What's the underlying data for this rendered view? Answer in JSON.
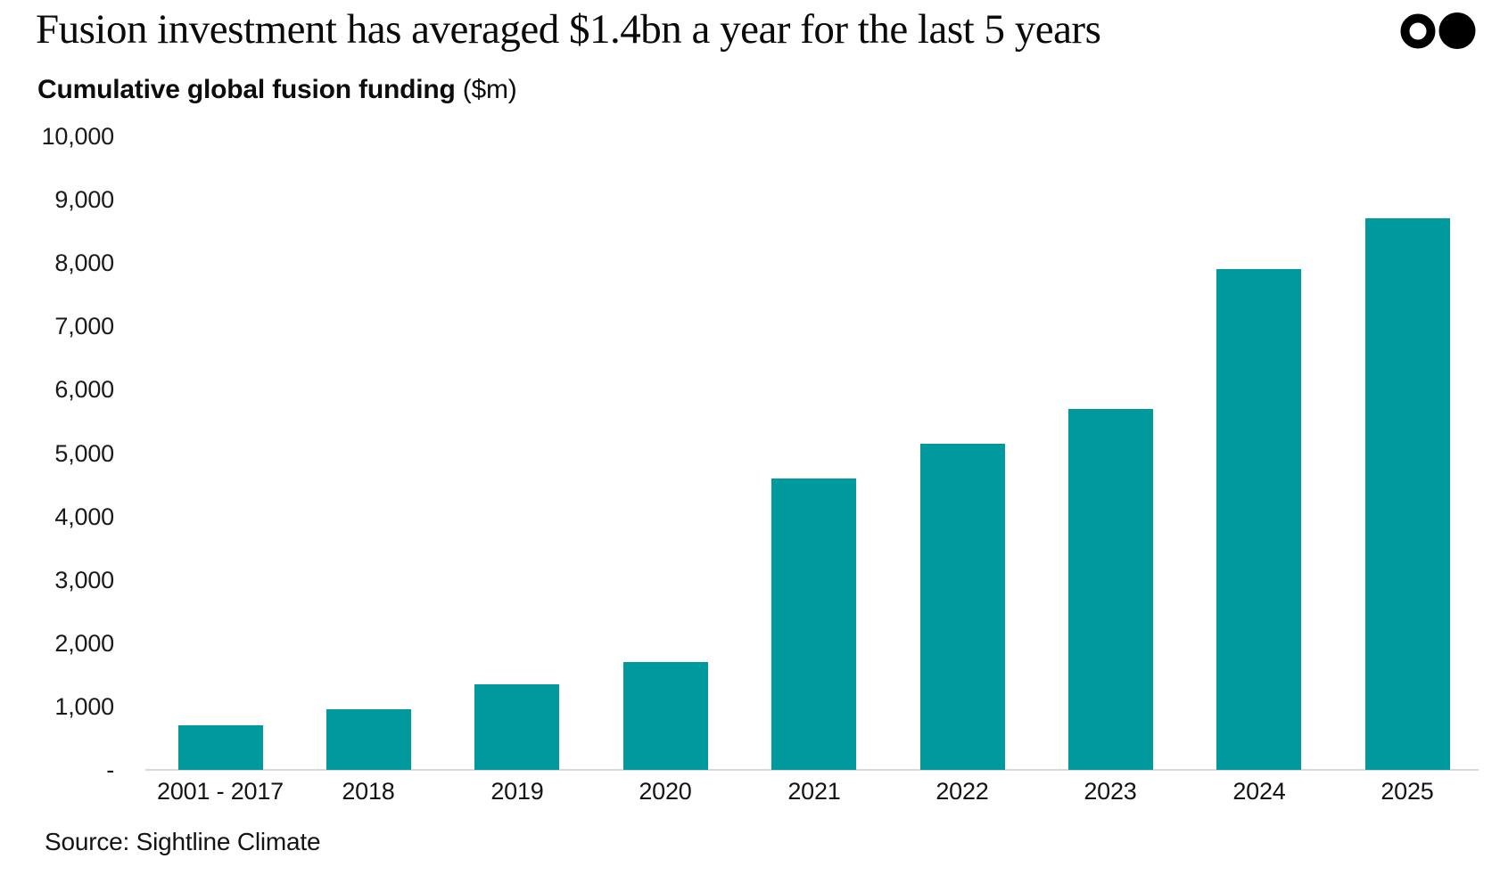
{
  "header": {
    "title": "Fusion investment has averaged $1.4bn a year for the last 5 years"
  },
  "subtitle": {
    "label": "Cumulative global fusion funding",
    "unit": "($m)"
  },
  "source": {
    "label": "Source: Sightline Climate"
  },
  "logo": {
    "name": "two-dots-logo",
    "color": "#000000"
  },
  "colors": {
    "bar": "#00999E",
    "axis_line": "#D9D9D9",
    "title_text": "#0A0A0A",
    "label_text": "#1A1A1A"
  },
  "chart_data": {
    "type": "bar",
    "title": "Fusion investment has averaged $1.4bn a year for the last 5 years",
    "subtitle": "Cumulative global fusion funding ($m)",
    "ylabel": "Cumulative global fusion funding ($m)",
    "xlabel": "",
    "categories": [
      "2001 - 2017",
      "2018",
      "2019",
      "2020",
      "2021",
      "2022",
      "2023",
      "2024",
      "2025"
    ],
    "values": [
      700,
      950,
      1350,
      1700,
      4600,
      5150,
      5700,
      7900,
      8700
    ],
    "ylim": [
      0,
      10000
    ],
    "yticks": [
      {
        "value": 0,
        "label": "-"
      },
      {
        "value": 1000,
        "label": "1,000"
      },
      {
        "value": 2000,
        "label": "2,000"
      },
      {
        "value": 3000,
        "label": "3,000"
      },
      {
        "value": 4000,
        "label": "4,000"
      },
      {
        "value": 5000,
        "label": "5,000"
      },
      {
        "value": 6000,
        "label": "6,000"
      },
      {
        "value": 7000,
        "label": "7,000"
      },
      {
        "value": 8000,
        "label": "8,000"
      },
      {
        "value": 9000,
        "label": "9,000"
      },
      {
        "value": 10000,
        "label": "10,000"
      }
    ],
    "grid": false,
    "legend_position": "none",
    "bar_color": "#00999E",
    "source": "Source: Sightline Climate"
  }
}
